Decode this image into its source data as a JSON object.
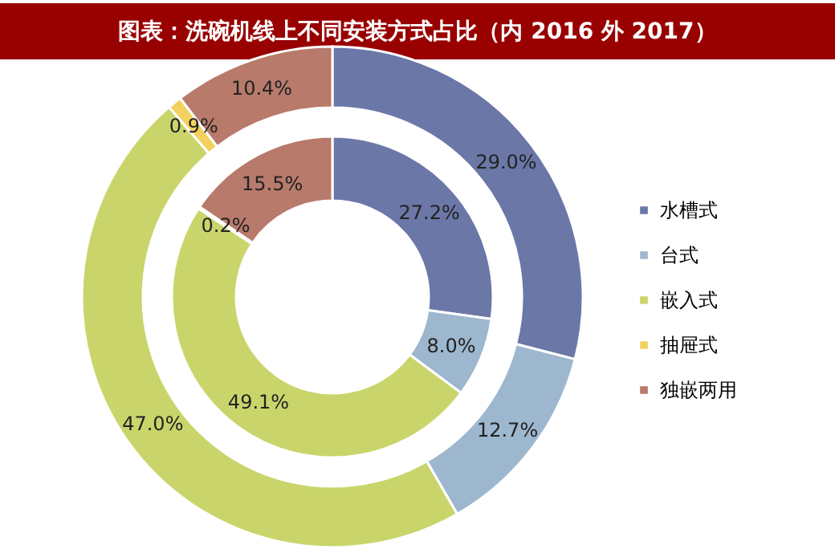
{
  "chart_data": {
    "type": "donut",
    "title": "图表：洗碗机线上不同安装方式占比（内 2016 外 2017）",
    "categories": [
      "水槽式",
      "台式",
      "嵌入式",
      "抽屉式",
      "独嵌两用"
    ],
    "colors": [
      "#6b77a7",
      "#9db7cf",
      "#c9d56b",
      "#f2d15e",
      "#b87a6b"
    ],
    "series": [
      {
        "values": [
          27.2,
          8.0,
          49.1,
          0.2,
          15.5
        ],
        "value_labels": [
          "27.2%",
          "8.0%",
          "49.1%",
          "0.2%",
          "15.5%"
        ]
      },
      {
        "values": [
          29.0,
          12.7,
          47.0,
          0.9,
          10.4
        ],
        "value_labels": [
          "29.0%",
          "12.7%",
          "47.0%",
          "0.9%",
          "10.4%"
        ]
      }
    ],
    "legend": "right"
  }
}
